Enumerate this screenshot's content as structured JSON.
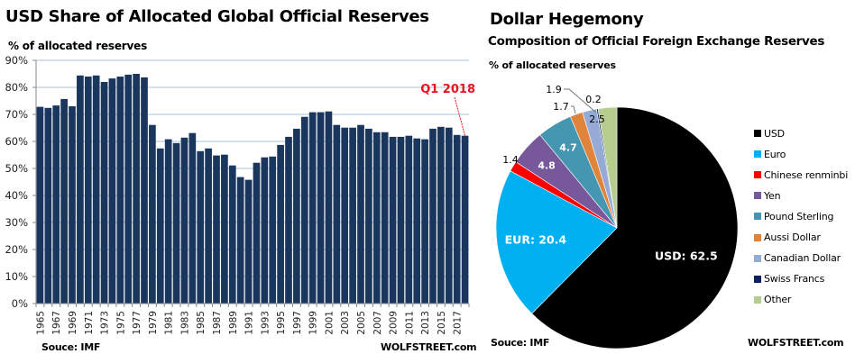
{
  "chart_data": [
    {
      "type": "bar",
      "title": "USD Share of Allocated Global Official Reserves",
      "ylabel": "% of allocated reserves",
      "xlabel": "",
      "ylim": [
        0,
        90
      ],
      "yticks": [
        "0%",
        "10%",
        "20%",
        "30%",
        "40%",
        "50%",
        "60%",
        "70%",
        "80%",
        "90%"
      ],
      "ytick_values": [
        0,
        10,
        20,
        30,
        40,
        50,
        60,
        70,
        80,
        90
      ],
      "grid": true,
      "bar_color": "#1B365D",
      "categories": [
        "1965",
        "1966",
        "1967",
        "1968",
        "1969",
        "1970",
        "1971",
        "1972",
        "1973",
        "1974",
        "1975",
        "1976",
        "1977",
        "1978",
        "1979",
        "1980",
        "1981",
        "1982",
        "1983",
        "1984",
        "1985",
        "1986",
        "1987",
        "1988",
        "1989",
        "1990",
        "1991",
        "1992",
        "1993",
        "1994",
        "1995",
        "1996",
        "1997",
        "1998",
        "1999",
        "2000",
        "2001",
        "2002",
        "2003",
        "2004",
        "2005",
        "2006",
        "2007",
        "2008",
        "2009",
        "2010",
        "2011",
        "2012",
        "2013",
        "2014",
        "2015",
        "2016",
        "2017",
        "2018"
      ],
      "xtick_labels": [
        "1965",
        "1967",
        "1969",
        "1971",
        "1973",
        "1975",
        "1977",
        "1979",
        "1981",
        "1983",
        "1985",
        "1987",
        "1989",
        "1991",
        "1993",
        "1995",
        "1997",
        "1999",
        "2001",
        "2003",
        "2005",
        "2007",
        "2009",
        "2011",
        "2013",
        "2015",
        "2017"
      ],
      "values": [
        72.8,
        72.4,
        73.3,
        75.7,
        73.0,
        84.4,
        84.0,
        84.4,
        82.0,
        83.3,
        84.0,
        84.7,
        85.0,
        83.7,
        66.1,
        57.4,
        60.8,
        59.4,
        61.4,
        63.1,
        56.4,
        57.4,
        54.8,
        55.1,
        51.1,
        46.8,
        45.8,
        52.1,
        54.1,
        54.4,
        58.7,
        61.7,
        64.7,
        69.1,
        70.8,
        70.8,
        71.1,
        66.1,
        65.1,
        65.1,
        66.1,
        64.7,
        63.4,
        63.4,
        61.7,
        61.7,
        62.1,
        61.1,
        60.8,
        64.7,
        65.4,
        65.1,
        62.4,
        62.1
      ],
      "annotation": {
        "text": "Q1 2018",
        "target": "2018",
        "color": "#E8131F"
      },
      "source": "Souce: IMF",
      "credit": "WOLFSTREET.com"
    },
    {
      "type": "pie",
      "title": "Dollar Hegemony",
      "subtitle": "Composition of Official Foreign Exchange Reserves",
      "unit_label": "% of allocated reserves",
      "legend_position": "right",
      "slices": [
        {
          "name": "USD",
          "value": 62.5,
          "label": "USD: 62.5",
          "color": "#000000",
          "label_color": "#ffffff"
        },
        {
          "name": "Euro",
          "value": 20.4,
          "label": "EUR: 20.4",
          "color": "#00B0F0",
          "label_color": "#ffffff"
        },
        {
          "name": "Chinese renminbi",
          "value": 1.4,
          "label": "1.4",
          "color": "#FF0000",
          "label_color": "#000000"
        },
        {
          "name": "Yen",
          "value": 4.8,
          "label": "4.8",
          "color": "#77599B",
          "label_color": "#ffffff"
        },
        {
          "name": "Pound Sterling",
          "value": 4.7,
          "label": "4.7",
          "color": "#4596B0",
          "label_color": "#ffffff"
        },
        {
          "name": "Aussi Dollar",
          "value": 1.7,
          "label": "1.7",
          "color": "#E0843B",
          "label_color": "#000000"
        },
        {
          "name": "Canadian Dollar",
          "value": 1.9,
          "label": "1.9",
          "color": "#96AAD6",
          "label_color": "#000000"
        },
        {
          "name": "Swiss Francs",
          "value": 0.2,
          "label": "0.2",
          "color": "#0B2060",
          "label_color": "#000000"
        },
        {
          "name": "Other",
          "value": 2.5,
          "label": "2.5",
          "color": "#B7CC8F",
          "label_color": "#000000"
        }
      ],
      "source": "Souce: IMF",
      "credit": "WOLFSTREET.com"
    }
  ]
}
